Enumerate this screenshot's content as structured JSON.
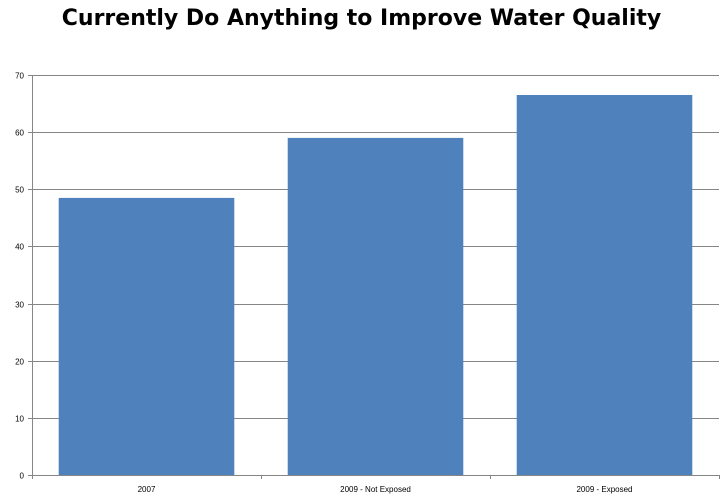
{
  "chart_data": {
    "type": "bar",
    "title": "Currently Do Anything to Improve Water Quality",
    "categories": [
      "2007",
      "2009 - Not Exposed",
      "2009 - Exposed"
    ],
    "series": [
      {
        "values": [
          48.5,
          59,
          66.5
        ]
      }
    ],
    "ylim": [
      0,
      70
    ],
    "yticks": [
      0,
      10,
      20,
      30,
      40,
      50,
      60,
      70
    ],
    "grid": true,
    "legend": "none",
    "colors": {
      "bar": "#4f81bd",
      "grid": "#868686",
      "axis": "#868686"
    }
  }
}
